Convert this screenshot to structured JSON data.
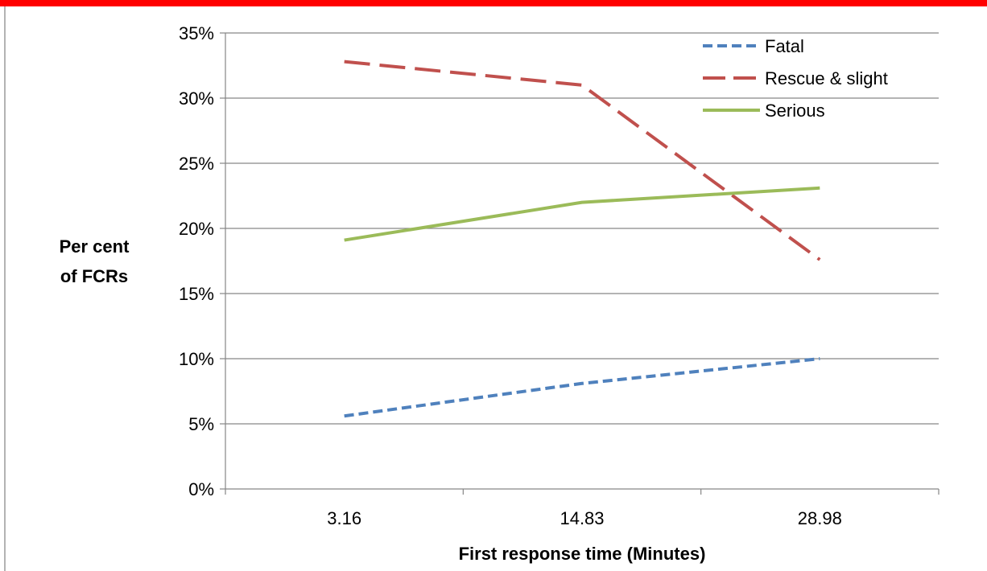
{
  "chart_data": {
    "type": "line",
    "categories": [
      "3.16",
      "14.83",
      "28.98"
    ],
    "series": [
      {
        "name": "Fatal",
        "values": [
          5.6,
          8.1,
          10.0
        ],
        "color": "#4f81bd",
        "dash": "dotted"
      },
      {
        "name": "Rescue & slight",
        "values": [
          32.8,
          31.0,
          17.6
        ],
        "color": "#c0504d",
        "dash": "long-dash"
      },
      {
        "name": "Serious",
        "values": [
          19.1,
          22.0,
          23.1
        ],
        "color": "#9bbb59",
        "dash": "solid"
      }
    ],
    "yticks": [
      "0%",
      "5%",
      "10%",
      "15%",
      "20%",
      "25%",
      "30%",
      "35%"
    ],
    "ylim": [
      0,
      35
    ],
    "ylabel_lines": [
      "Per cent",
      "of FCRs"
    ],
    "xlabel": "First response time (Minutes)",
    "grid": true,
    "legend_position": "top-right",
    "frame_color": "#ff0000"
  }
}
